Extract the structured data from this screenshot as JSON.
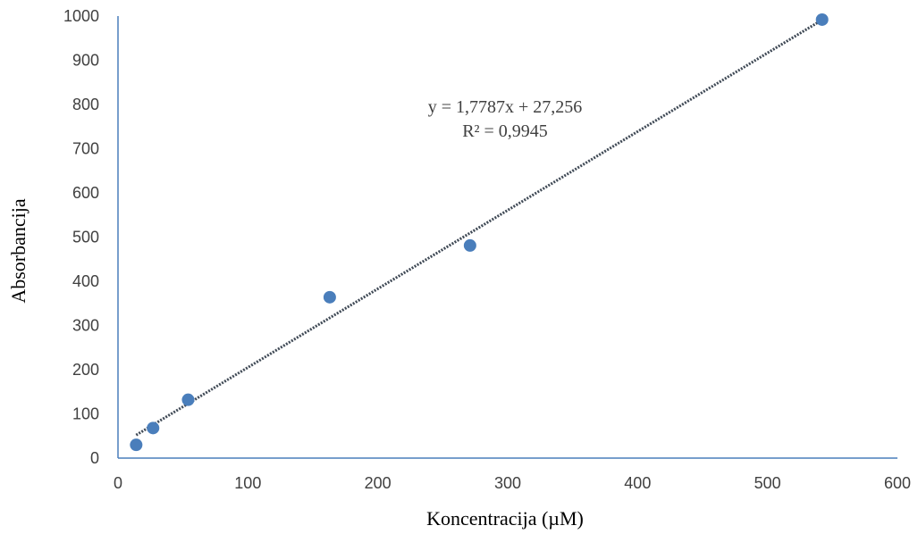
{
  "chart_data": {
    "type": "scatter",
    "xlabel": "Koncentracija (µM)",
    "ylabel": "Absorbancija",
    "xlim": [
      0,
      600
    ],
    "ylim": [
      0,
      1000
    ],
    "xticks": [
      "0",
      "100",
      "200",
      "300",
      "400",
      "500",
      "600"
    ],
    "yticks": [
      "0",
      "100",
      "200",
      "300",
      "400",
      "500",
      "600",
      "700",
      "800",
      "900",
      "1000"
    ],
    "grid": false,
    "series": [
      {
        "points": [
          {
            "x": 14,
            "y": 30
          },
          {
            "x": 27,
            "y": 68
          },
          {
            "x": 54,
            "y": 132
          },
          {
            "x": 163,
            "y": 364
          },
          {
            "x": 271,
            "y": 481
          },
          {
            "x": 542,
            "y": 992
          }
        ],
        "color": "#4a7ebb"
      }
    ],
    "trendline": {
      "type": "linear",
      "slope": 1.7787,
      "intercept": 27.256,
      "x_range": [
        14,
        542
      ],
      "color": "#404a56",
      "equation": "y = 1,7787x + 27,256",
      "r_squared": "R² = 0,9945"
    },
    "axis_color": "#4a7ebb"
  }
}
